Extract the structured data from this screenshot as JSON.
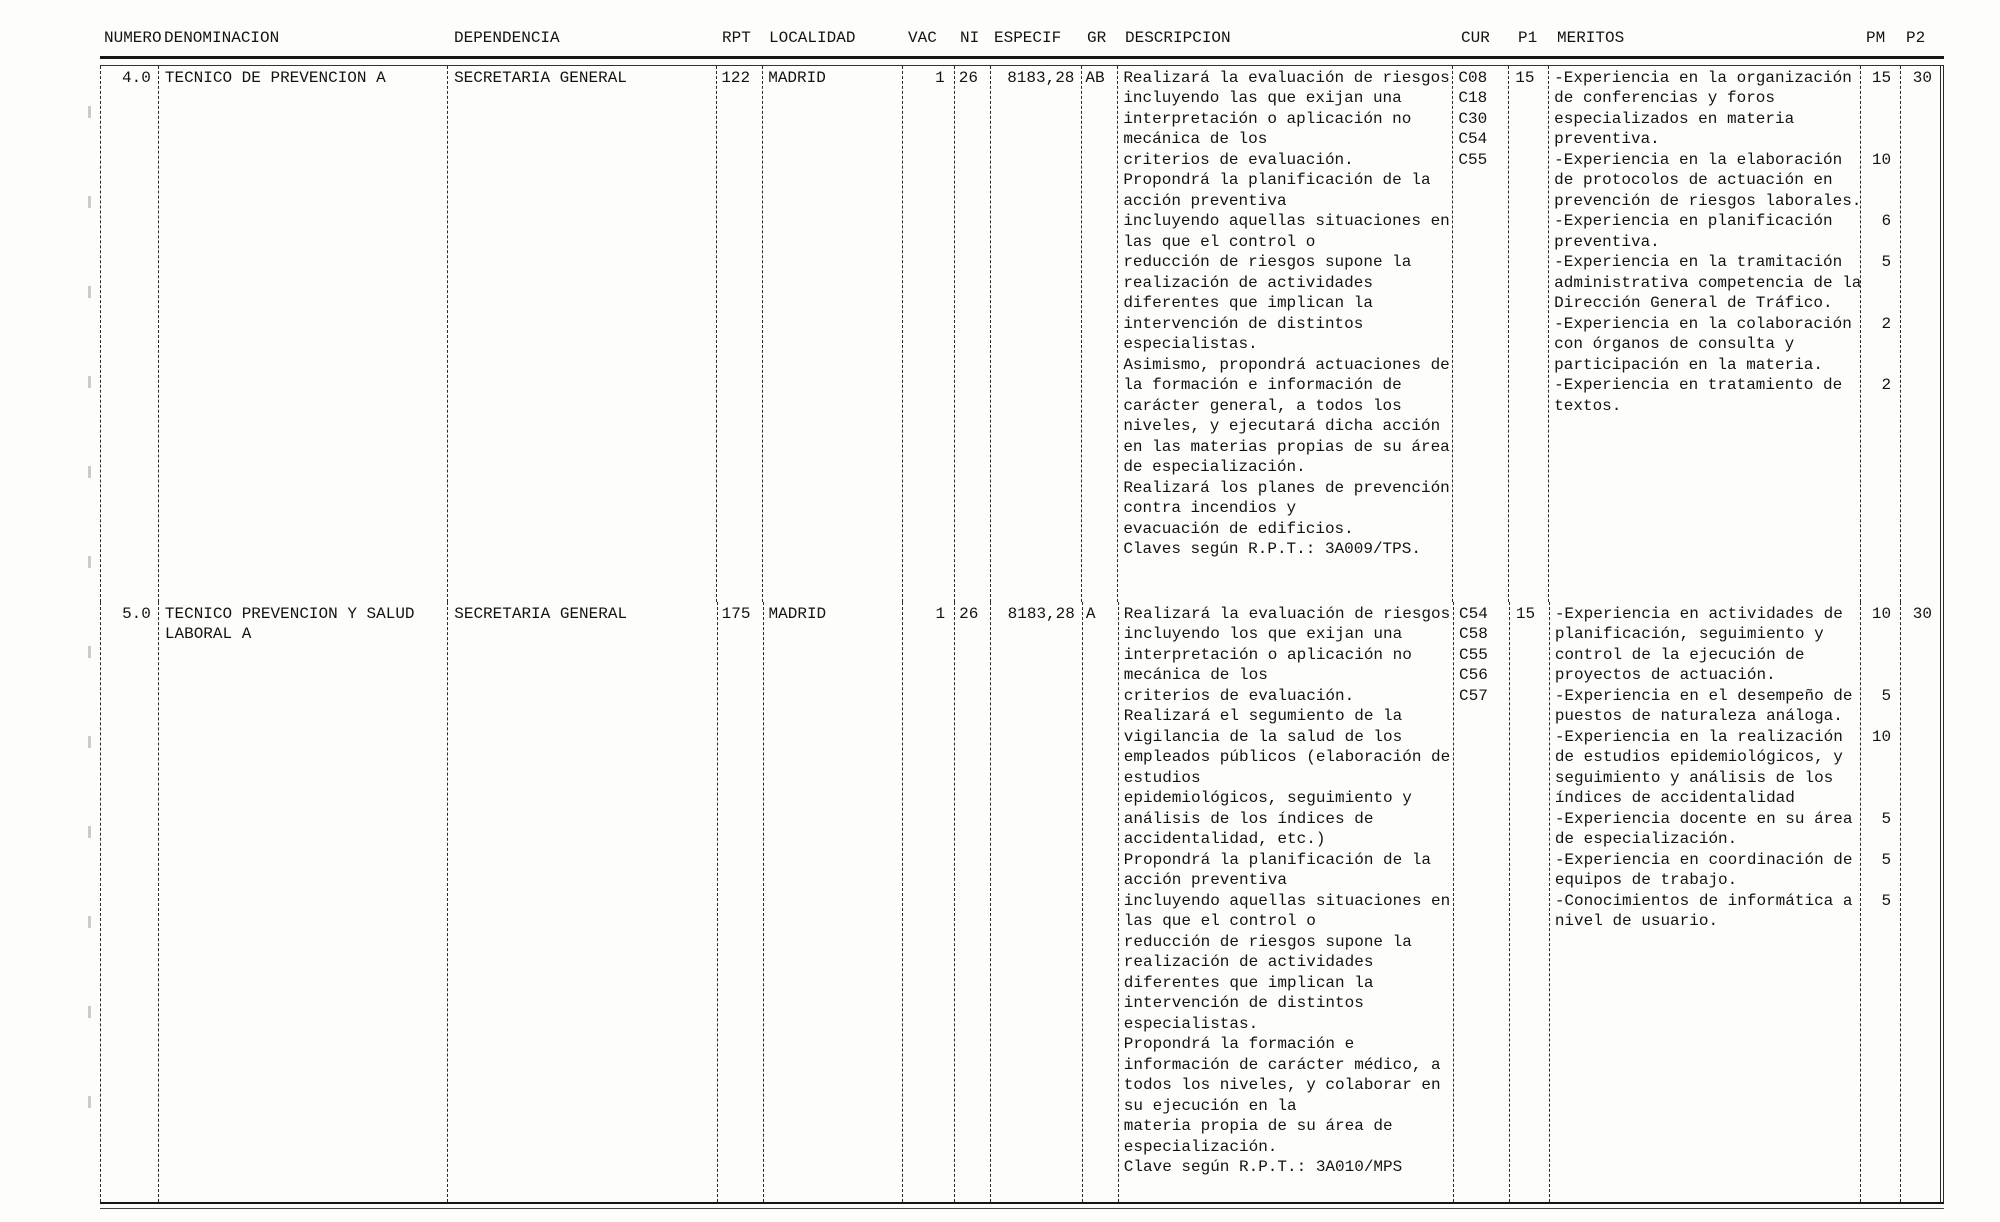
{
  "header": {
    "columns": [
      {
        "key": "numero",
        "label": "NUMERO"
      },
      {
        "key": "denominacion",
        "label": "DENOMINACION"
      },
      {
        "key": "dependencia",
        "label": "DEPENDENCIA"
      },
      {
        "key": "rpt",
        "label": "RPT"
      },
      {
        "key": "localidad",
        "label": "LOCALIDAD"
      },
      {
        "key": "vac",
        "label": "VAC"
      },
      {
        "key": "ni",
        "label": "NI"
      },
      {
        "key": "especif",
        "label": "ESPECIF"
      },
      {
        "key": "gr",
        "label": "GR"
      },
      {
        "key": "descripcion",
        "label": "DESCRIPCION"
      },
      {
        "key": "cur",
        "label": "CUR"
      },
      {
        "key": "p1",
        "label": "P1"
      },
      {
        "key": "meritos",
        "label": "MERITOS"
      },
      {
        "key": "pm",
        "label": "PM"
      },
      {
        "key": "p2",
        "label": "P2"
      }
    ]
  },
  "rows": [
    {
      "numero": "4.0",
      "denominacion": [
        "TECNICO DE PREVENCION A"
      ],
      "dependencia": [
        "SECRETARIA GENERAL"
      ],
      "rpt": "122",
      "localidad": "MADRID",
      "vac": "1",
      "ni": "26",
      "especif": "8183,28",
      "gr": "AB",
      "descripcion": [
        "Realizará la evaluación de riesgos",
        "incluyendo las que exijan una",
        "interpretación o aplicación no",
        "mecánica de los",
        "criterios de evaluación.",
        "Propondrá la planificación de la",
        "acción preventiva",
        "incluyendo aquellas situaciones en",
        "las que el control o",
        "reducción de riesgos supone la",
        "realización de actividades",
        "diferentes que implican la",
        "intervención de distintos",
        "especialistas.",
        "Asimismo, propondrá actuaciones de",
        "la formación e información de",
        "carácter general, a todos los",
        "niveles, y ejecutará dicha acción",
        "en las materias propias de su área",
        "de especialización.",
        "Realizará los planes de prevención",
        "contra incendios y",
        "evacuación de edificios.",
        "Claves según R.P.T.: 3A009/TPS."
      ],
      "cur": [
        "C08",
        "C18",
        "C30",
        "C54",
        "C55"
      ],
      "p1": "15",
      "meritos": [
        "-Experiencia en la organización",
        "de conferencias y foros",
        "especializados en materia",
        "preventiva.",
        "-Experiencia en la elaboración",
        "de protocolos de actuación en",
        "prevención de riesgos laborales.",
        "-Experiencia en planificación",
        "preventiva.",
        "-Experiencia en la tramitación",
        "administrativa competencia de la",
        "Dirección General de Tráfico.",
        "-Experiencia en la colaboración",
        "con órganos de consulta y",
        "participación en la materia.",
        "-Experiencia en tratamiento de",
        "textos."
      ],
      "pm": [
        "15",
        "",
        "",
        "",
        "10",
        "",
        "",
        "6",
        "",
        "5",
        "",
        "",
        "2",
        "",
        "",
        "2",
        ""
      ],
      "p2": [
        "30",
        "",
        "",
        "",
        "",
        "",
        "",
        "",
        "",
        "",
        "",
        "",
        "",
        "",
        "",
        "",
        ""
      ]
    },
    {
      "numero": "5.0",
      "denominacion": [
        "TECNICO PREVENCION Y SALUD",
        "LABORAL A"
      ],
      "dependencia": [
        "SECRETARIA GENERAL"
      ],
      "rpt": "175",
      "localidad": "MADRID",
      "vac": "1",
      "ni": "26",
      "especif": "8183,28",
      "gr": "A",
      "descripcion": [
        "Realizará la evaluación de riesgos",
        "incluyendo los que exijan una",
        "interpretación o aplicación no",
        "mecánica de los",
        "criterios de evaluación.",
        "Realizará el segumiento de la",
        "vigilancia de la salud de los",
        "empleados públicos (elaboración de",
        "estudios",
        "epidemiológicos, seguimiento y",
        "análisis de los índices de",
        "accidentalidad, etc.)",
        "Propondrá la planificación de la",
        "acción preventiva",
        "incluyendo aquellas situaciones en",
        "las que el control o",
        "reducción de riesgos supone la",
        "realización de actividades",
        "diferentes que implican la",
        "intervención de distintos",
        "especialistas.",
        "Propondrá la formación e",
        "información de carácter médico, a",
        "todos los niveles, y colaborar en",
        "su ejecución en la",
        "materia propia de su área de",
        "especialización.",
        "Clave según R.P.T.: 3A010/MPS"
      ],
      "cur": [
        "C54",
        "C58",
        "C55",
        "C56",
        "C57"
      ],
      "p1": "15",
      "meritos": [
        "-Experiencia en actividades de",
        "planificación, seguimiento y",
        "control de la ejecución de",
        "proyectos de actuación.",
        "-Experiencia en el desempeño de",
        "puestos de naturaleza análoga.",
        "-Experiencia en la realización",
        "de estudios epidemiológicos, y",
        "seguimiento y análisis de los",
        "índices de accidentalidad",
        "-Experiencia docente en su área",
        "de especialización.",
        "-Experiencia en coordinación de",
        "equipos de trabajo.",
        "-Conocimientos de informática a",
        "nivel de usuario."
      ],
      "pm": [
        "10",
        "",
        "",
        "",
        "5",
        "",
        "10",
        "",
        "",
        "",
        "5",
        "",
        "5",
        "",
        "5",
        ""
      ],
      "p2": [
        "30",
        "",
        "",
        "",
        "",
        "",
        "",
        "",
        "",
        "",
        "",
        "",
        "",
        "",
        "",
        ""
      ]
    }
  ]
}
